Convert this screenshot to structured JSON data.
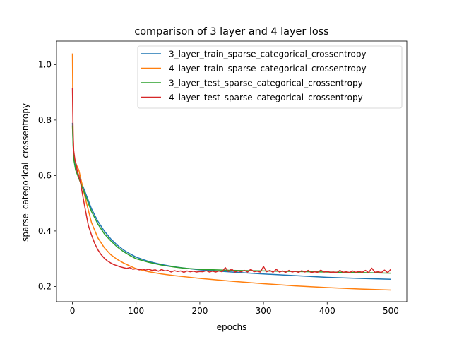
{
  "chart_data": {
    "type": "line",
    "title": "comparison of 3 layer and 4 layer loss",
    "xlabel": "epochs",
    "ylabel": "sparse_categorical_crossentropy",
    "xlim": [
      -25,
      525
    ],
    "ylim": [
      0.145,
      1.085
    ],
    "xticks": [
      0,
      100,
      200,
      300,
      400,
      500
    ],
    "yticks": [
      0.2,
      0.4,
      0.6,
      0.8,
      1.0
    ],
    "xtick_labels": [
      "0",
      "100",
      "200",
      "300",
      "400",
      "500"
    ],
    "ytick_labels": [
      "0.2",
      "0.4",
      "0.6",
      "0.8",
      "1.0"
    ],
    "grid": false,
    "legend_position": "upper right",
    "series": [
      {
        "name": "3_layer_train_sparse_categorical_crossentropy",
        "color": "#1f77b4",
        "x": [
          0,
          1,
          2,
          5,
          10,
          15,
          20,
          30,
          40,
          50,
          60,
          70,
          80,
          90,
          100,
          120,
          140,
          160,
          180,
          200,
          250,
          300,
          350,
          400,
          450,
          500
        ],
        "y": [
          0.79,
          0.72,
          0.67,
          0.63,
          0.6,
          0.57,
          0.54,
          0.48,
          0.435,
          0.4,
          0.372,
          0.35,
          0.332,
          0.318,
          0.306,
          0.29,
          0.279,
          0.271,
          0.265,
          0.26,
          0.252,
          0.245,
          0.239,
          0.233,
          0.229,
          0.226
        ]
      },
      {
        "name": "4_layer_train_sparse_categorical_crossentropy",
        "color": "#ff7f0e",
        "x": [
          0,
          1,
          2,
          5,
          10,
          15,
          20,
          30,
          40,
          50,
          60,
          70,
          80,
          90,
          100,
          120,
          140,
          160,
          180,
          200,
          250,
          300,
          350,
          400,
          450,
          500
        ],
        "y": [
          1.04,
          0.75,
          0.68,
          0.645,
          0.62,
          0.57,
          0.52,
          0.43,
          0.375,
          0.34,
          0.315,
          0.298,
          0.285,
          0.274,
          0.264,
          0.253,
          0.245,
          0.239,
          0.234,
          0.229,
          0.219,
          0.21,
          0.202,
          0.196,
          0.191,
          0.187
        ]
      },
      {
        "name": "3_layer_test_sparse_categorical_crossentropy",
        "color": "#2ca02c",
        "x": [
          0,
          1,
          2,
          5,
          10,
          15,
          20,
          30,
          40,
          50,
          60,
          70,
          80,
          90,
          100,
          120,
          140,
          160,
          180,
          200,
          250,
          300,
          350,
          400,
          450,
          500
        ],
        "y": [
          0.78,
          0.71,
          0.66,
          0.62,
          0.59,
          0.56,
          0.53,
          0.47,
          0.425,
          0.39,
          0.365,
          0.343,
          0.326,
          0.312,
          0.3,
          0.287,
          0.277,
          0.27,
          0.265,
          0.262,
          0.258,
          0.256,
          0.254,
          0.252,
          0.25,
          0.248
        ]
      },
      {
        "name": "4_layer_test_sparse_categorical_crossentropy",
        "color": "#d62728",
        "x": [
          0,
          1,
          2,
          4,
          6,
          8,
          10,
          13,
          16,
          20,
          25,
          30,
          35,
          40,
          45,
          50,
          55,
          60,
          65,
          70,
          75,
          80,
          85,
          90,
          95,
          100,
          105,
          110,
          115,
          120,
          125,
          130,
          135,
          140,
          145,
          150,
          155,
          160,
          165,
          170,
          175,
          180,
          185,
          190,
          195,
          200,
          205,
          210,
          215,
          220,
          225,
          230,
          235,
          240,
          245,
          250,
          255,
          260,
          265,
          270,
          275,
          280,
          285,
          290,
          295,
          300,
          305,
          310,
          315,
          320,
          325,
          330,
          335,
          340,
          345,
          350,
          355,
          360,
          365,
          370,
          375,
          380,
          385,
          390,
          395,
          400,
          405,
          410,
          415,
          420,
          425,
          430,
          435,
          440,
          445,
          450,
          455,
          460,
          465,
          470,
          475,
          480,
          485,
          490,
          495,
          500
        ],
        "y": [
          0.915,
          0.76,
          0.69,
          0.655,
          0.64,
          0.61,
          0.6,
          0.57,
          0.53,
          0.48,
          0.42,
          0.385,
          0.355,
          0.332,
          0.315,
          0.302,
          0.292,
          0.285,
          0.279,
          0.275,
          0.271,
          0.268,
          0.265,
          0.268,
          0.262,
          0.264,
          0.26,
          0.263,
          0.259,
          0.262,
          0.258,
          0.26,
          0.255,
          0.261,
          0.256,
          0.258,
          0.252,
          0.257,
          0.254,
          0.256,
          0.251,
          0.256,
          0.253,
          0.255,
          0.252,
          0.254,
          0.253,
          0.257,
          0.252,
          0.255,
          0.252,
          0.256,
          0.253,
          0.268,
          0.254,
          0.263,
          0.252,
          0.256,
          0.253,
          0.258,
          0.252,
          0.262,
          0.253,
          0.255,
          0.252,
          0.272,
          0.253,
          0.258,
          0.251,
          0.262,
          0.252,
          0.256,
          0.251,
          0.258,
          0.252,
          0.255,
          0.251,
          0.257,
          0.252,
          0.258,
          0.25,
          0.253,
          0.251,
          0.259,
          0.252,
          0.254,
          0.251,
          0.252,
          0.25,
          0.258,
          0.251,
          0.253,
          0.25,
          0.256,
          0.251,
          0.254,
          0.251,
          0.258,
          0.25,
          0.266,
          0.251,
          0.253,
          0.25,
          0.259,
          0.25,
          0.262
        ]
      }
    ]
  }
}
